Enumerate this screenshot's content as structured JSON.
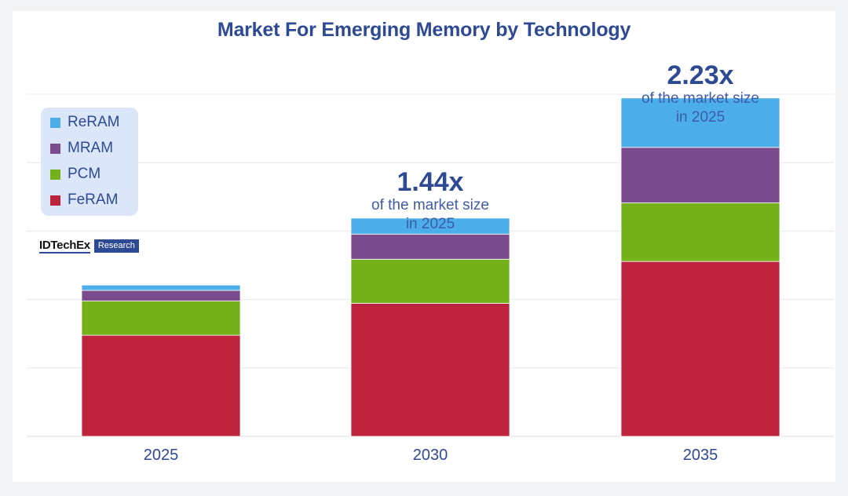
{
  "chart_data": {
    "type": "bar",
    "stacked": true,
    "title": "Market For Emerging Memory by Technology",
    "xlabel": "",
    "ylabel": "",
    "categories": [
      "2025",
      "2030",
      "2035"
    ],
    "ylim": [
      0,
      4.5
    ],
    "grid": true,
    "legend_position": "top-left",
    "series": [
      {
        "name": "FeRAM",
        "color": "#be233e",
        "values": [
          1.33,
          1.75,
          2.3
        ]
      },
      {
        "name": "PCM",
        "color": "#74b11a",
        "values": [
          0.45,
          0.58,
          0.77
        ]
      },
      {
        "name": "MRAM",
        "color": "#7a4b8d",
        "values": [
          0.14,
          0.33,
          0.73
        ]
      },
      {
        "name": "ReRAM",
        "color": "#4caee8",
        "values": [
          0.07,
          0.21,
          0.65
        ]
      }
    ],
    "annotations": [
      {
        "category": "2030",
        "multiplier": "1.44x",
        "text_line1": "of the market size",
        "text_line2": "in 2025"
      },
      {
        "category": "2035",
        "multiplier": "2.23x",
        "text_line1": "of the market size",
        "text_line2": "in 2025"
      }
    ],
    "legend": [
      "ReRAM",
      "MRAM",
      "PCM",
      "FeRAM"
    ]
  },
  "brand": {
    "name": "IDTechEx",
    "tag": "Research"
  },
  "colors": {
    "title": "#2e4a94",
    "gridline": "#e6e8ec",
    "legend_bg": "#dbe7f8"
  }
}
